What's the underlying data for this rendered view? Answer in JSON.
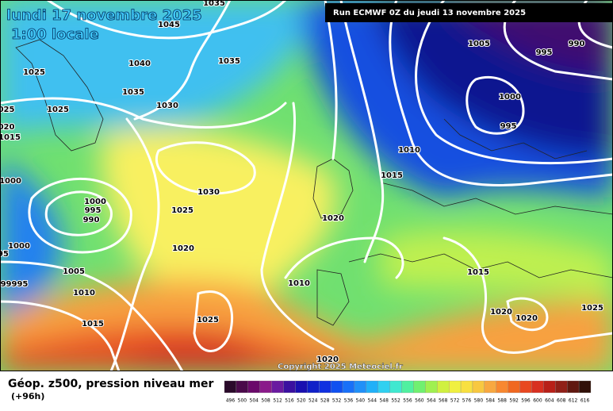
{
  "header": {
    "title": "lundi 17 novembre 2025",
    "subtitle": "1:00 locale",
    "run": "Run ECMWF 0Z du jeudi 13 novembre 2025"
  },
  "copyright": "Copyright 2025 Meteociel.fr",
  "legend": {
    "title": "Géop. z500, pression niveau mer",
    "step": "(+96h)"
  },
  "isobars": {
    "labels": [
      "1035",
      "1045",
      "1040",
      "1035",
      "1025",
      "1025",
      "1035",
      "1030",
      "025",
      "020",
      "1015",
      "1000",
      "1000",
      "995",
      "990",
      "1030",
      "1025",
      "1020",
      "1000",
      "95",
      "1005",
      "99995",
      "1010",
      "1015",
      "1025",
      "1010",
      "1020",
      "1015",
      "1010",
      "1005",
      "995",
      "990",
      "1000",
      "995",
      "1015",
      "1020",
      "1020",
      "1025",
      "1020"
    ]
  },
  "scale": {
    "values": [
      496,
      500,
      504,
      508,
      512,
      516,
      520,
      524,
      528,
      532,
      536,
      540,
      544,
      548,
      552,
      556,
      560,
      564,
      568,
      572,
      576,
      580,
      584,
      588,
      592,
      596,
      600,
      604,
      608,
      612,
      616
    ],
    "colors": [
      "#2a0a2a",
      "#4a0a4a",
      "#6a0a6a",
      "#8a1a8a",
      "#6a1aa0",
      "#3a10a0",
      "#1a10b0",
      "#1020c8",
      "#1030e0",
      "#1050f0",
      "#1870f8",
      "#2090f8",
      "#20b0f8",
      "#30d0f0",
      "#40e8d0",
      "#50f0a0",
      "#70f070",
      "#a0f050",
      "#d0f040",
      "#f0f040",
      "#f8e040",
      "#f8c840",
      "#f8a840",
      "#f88830",
      "#f06820",
      "#e84820",
      "#d83020",
      "#b82018",
      "#902018",
      "#601810",
      "#301008"
    ]
  }
}
